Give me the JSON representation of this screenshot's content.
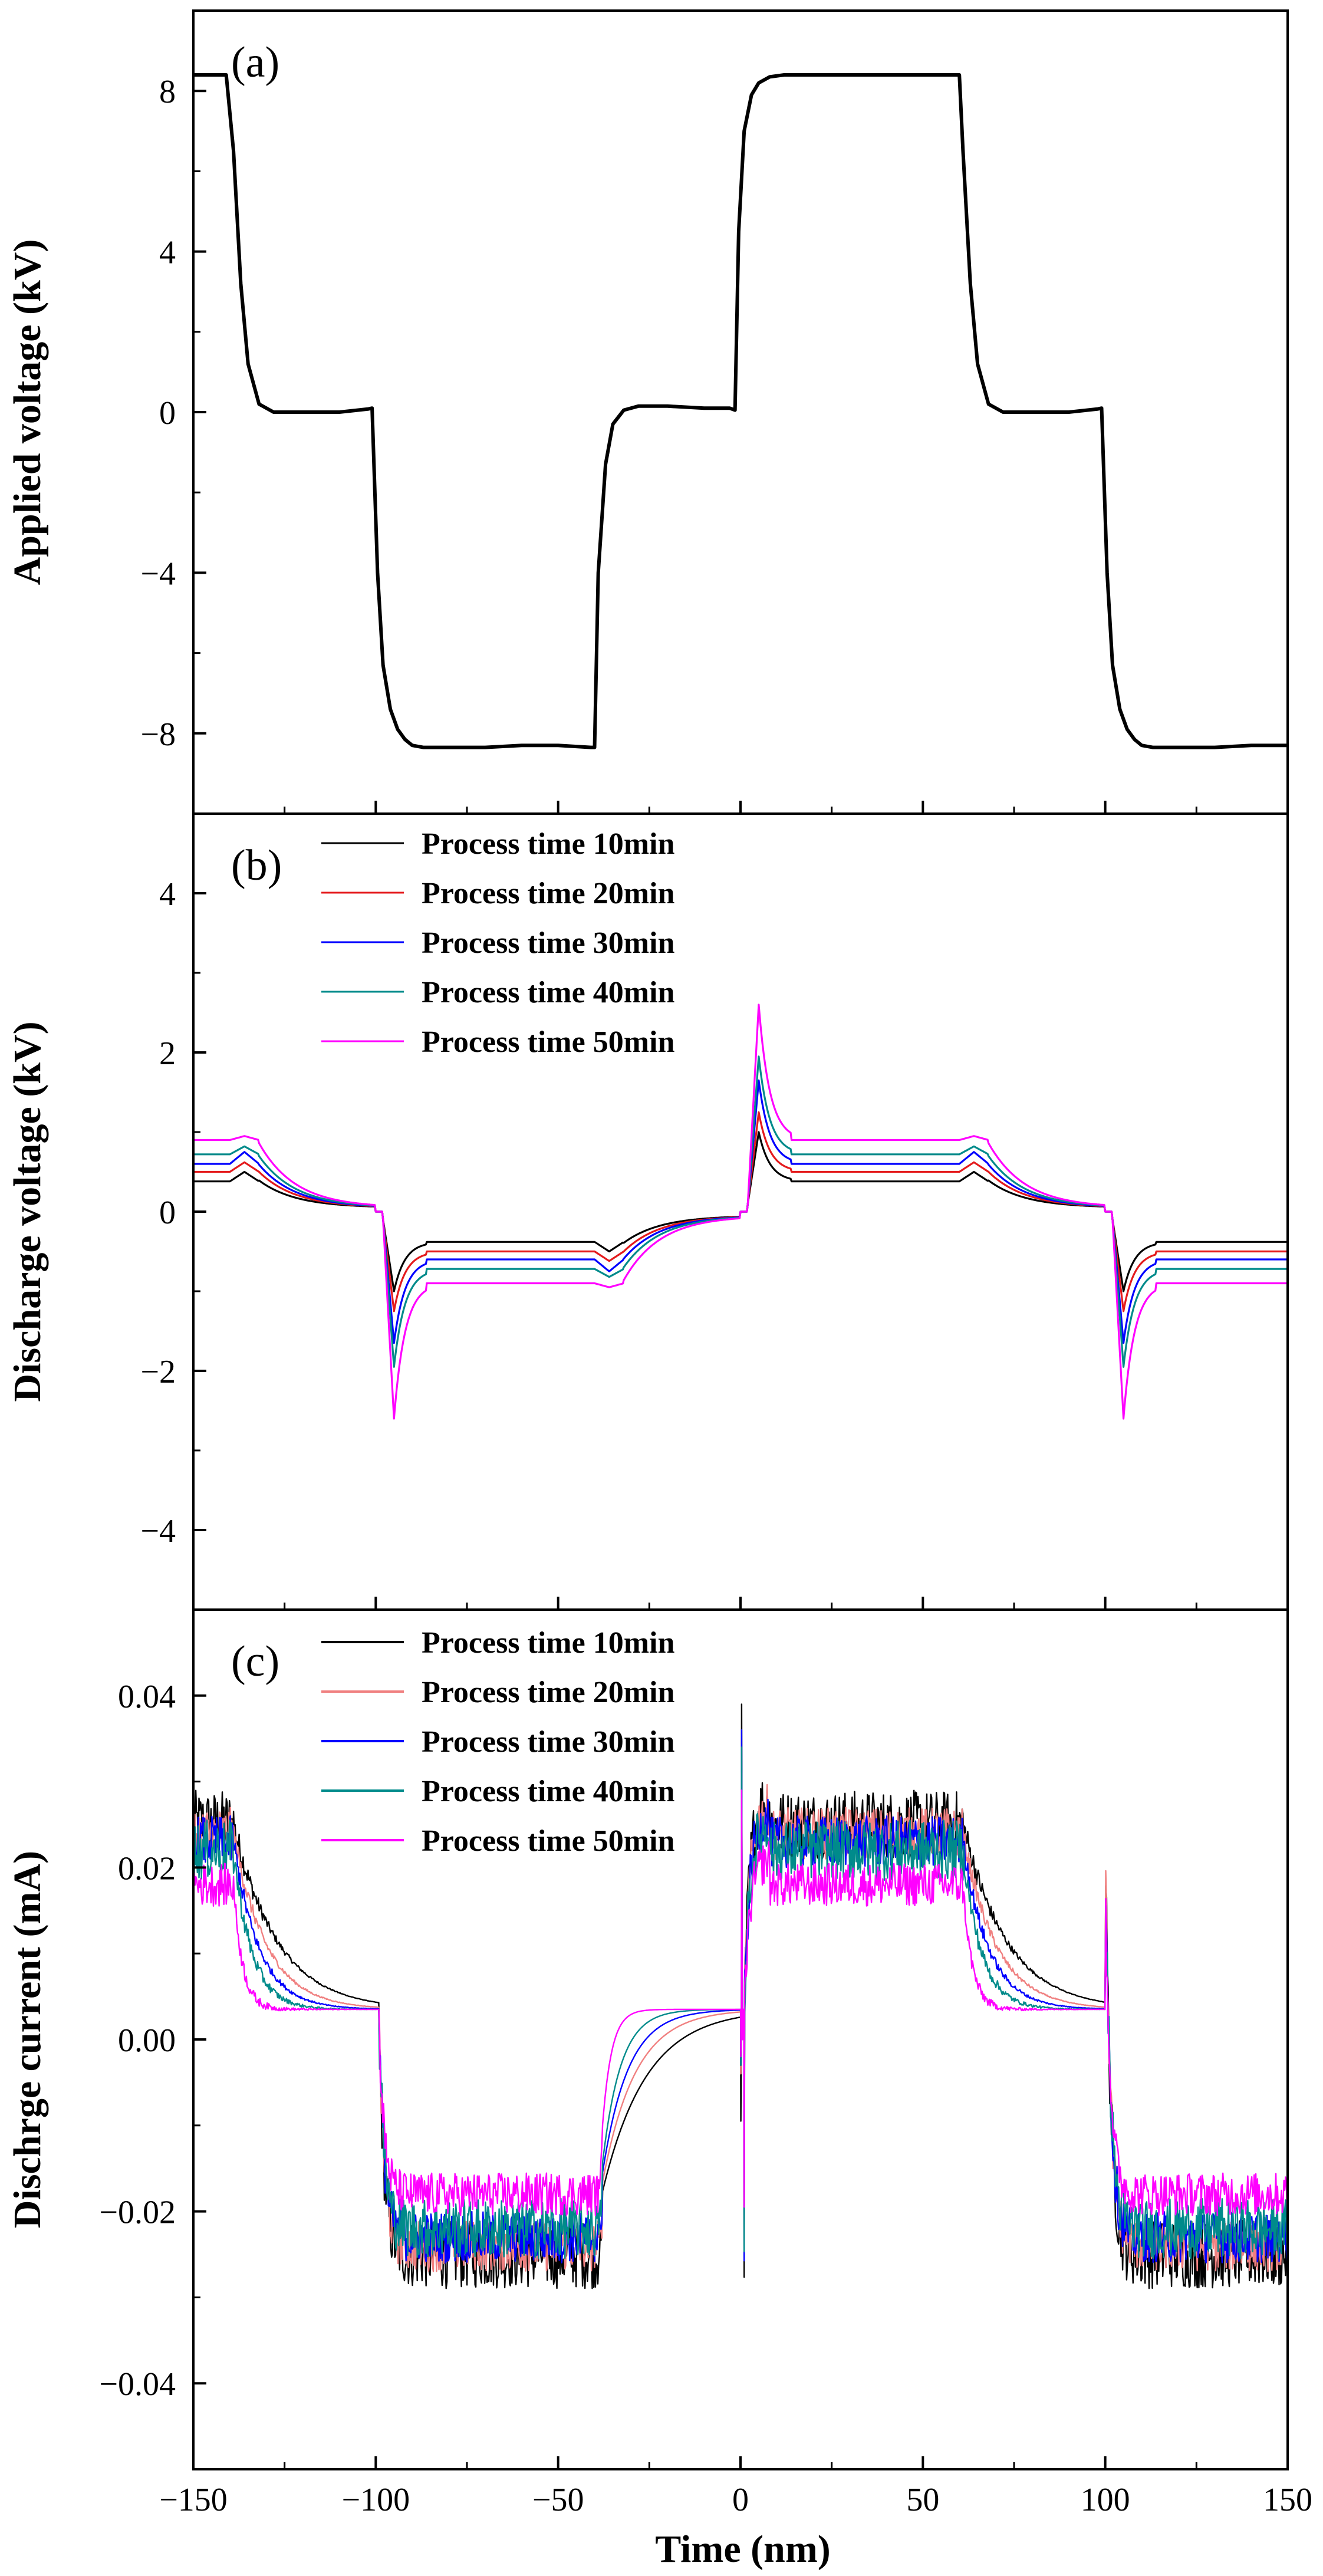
{
  "figure": {
    "xlabel": "Time (nm)",
    "xlim": [
      -150,
      150
    ],
    "xticks": [
      -150,
      -100,
      -50,
      0,
      50,
      100,
      150
    ],
    "xtick_labels": [
      "−150",
      "−100",
      "−50",
      "0",
      "50",
      "100",
      "150"
    ]
  },
  "chart_data": [
    {
      "type": "line",
      "panel": "(a)",
      "title": "",
      "xlabel": "Time (nm)",
      "ylabel": "Applied voltage (kV)",
      "xlim": [
        -150,
        150
      ],
      "ylim": [
        -10,
        10
      ],
      "yticks": [
        -8,
        -4,
        0,
        4,
        8
      ],
      "ytick_labels": [
        "−8",
        "−4",
        "0",
        "4",
        "8"
      ],
      "legend": [],
      "series": [
        {
          "name": "Applied voltage",
          "color": "#000000",
          "x": [
            -150,
            -141,
            -139,
            -137,
            -135,
            -132,
            -128,
            -120,
            -110,
            -102,
            -101,
            -99.5,
            -98,
            -96,
            -94,
            -92,
            -90,
            -87,
            -84,
            -78,
            -70,
            -60,
            -50,
            -41,
            -40,
            -39,
            -37,
            -35,
            -32,
            -28,
            -20,
            -10,
            -3,
            -1.5,
            -0.5,
            1,
            3,
            5,
            8,
            12,
            20,
            30,
            40,
            50,
            59,
            60,
            61,
            63,
            65,
            68,
            72,
            80,
            90,
            98,
            99,
            100.5,
            102,
            104,
            106,
            108,
            110,
            113,
            116,
            122,
            130,
            140,
            150
          ],
          "y": [
            8.4,
            8.4,
            6.5,
            3.2,
            1.2,
            0.2,
            0,
            0,
            0,
            0.08,
            0.1,
            -4.0,
            -6.3,
            -7.4,
            -7.9,
            -8.15,
            -8.3,
            -8.35,
            -8.35,
            -8.35,
            -8.35,
            -8.3,
            -8.3,
            -8.35,
            -8.35,
            -4.0,
            -1.3,
            -0.3,
            0.05,
            0.15,
            0.15,
            0.1,
            0.1,
            0.05,
            4.5,
            7.0,
            7.9,
            8.2,
            8.35,
            8.4,
            8.4,
            8.4,
            8.4,
            8.4,
            8.4,
            8.4,
            6.5,
            3.2,
            1.2,
            0.2,
            0,
            0,
            0,
            0.08,
            0.1,
            -4.0,
            -6.3,
            -7.4,
            -7.9,
            -8.15,
            -8.3,
            -8.35,
            -8.35,
            -8.35,
            -8.35,
            -8.3,
            -8.3
          ]
        }
      ]
    },
    {
      "type": "line",
      "panel": "(b)",
      "title": "",
      "xlabel": "Time (nm)",
      "ylabel": "Discharge voltage (kV)",
      "xlim": [
        -150,
        150
      ],
      "ylim": [
        -5,
        5
      ],
      "yticks": [
        -4,
        -2,
        0,
        2,
        4
      ],
      "ytick_labels": [
        "−4",
        "−2",
        "0",
        "2",
        "4"
      ],
      "legend": [
        {
          "label": "Process time 10min",
          "color": "#000000"
        },
        {
          "label": "Process time 20min",
          "color": "#e41a1c"
        },
        {
          "label": "Process time 30min",
          "color": "#0000ff"
        },
        {
          "label": "Process time 40min",
          "color": "#008b8b"
        },
        {
          "label": "Process time 50min",
          "color": "#ff00ff"
        }
      ],
      "series": [
        {
          "name": "Process time 10min",
          "color": "#000000",
          "amplitude": 0.38,
          "peak": 0.5,
          "spike": 1.0,
          "first_peak_time": -134
        },
        {
          "name": "Process time 20min",
          "color": "#e41a1c",
          "amplitude": 0.5,
          "peak": 0.62,
          "spike": 1.25,
          "first_peak_time": -134
        },
        {
          "name": "Process time 30min",
          "color": "#0000ff",
          "amplitude": 0.6,
          "peak": 0.75,
          "spike": 1.65,
          "first_peak_time": -134
        },
        {
          "name": "Process time 40min",
          "color": "#008b8b",
          "amplitude": 0.72,
          "peak": 0.82,
          "spike": 1.95,
          "first_peak_time": -134
        },
        {
          "name": "Process time 50min",
          "color": "#ff00ff",
          "amplitude": 0.9,
          "peak": 0.95,
          "spike": 2.6,
          "first_peak_time": -134
        }
      ]
    },
    {
      "type": "line",
      "panel": "(c)",
      "title": "",
      "xlabel": "Time (nm)",
      "ylabel": "Dischrge current (mA)",
      "xlim": [
        -150,
        150
      ],
      "ylim": [
        -0.05,
        0.05
      ],
      "yticks": [
        -0.04,
        -0.02,
        0.0,
        0.02,
        0.04
      ],
      "ytick_labels": [
        "−0.04",
        "−0.02",
        "0.00",
        "0.02",
        "0.04"
      ],
      "legend": [
        {
          "label": "Process time 10min",
          "color": "#000000"
        },
        {
          "label": "Process time 20min",
          "color": "#f08080"
        },
        {
          "label": "Process time 30min",
          "color": "#0000ff"
        },
        {
          "label": "Process time 40min",
          "color": "#008b8b"
        },
        {
          "label": "Process time 50min",
          "color": "#ff00ff"
        }
      ],
      "series": [
        {
          "name": "Process time 10min",
          "color": "#000000",
          "plateau": 0.025,
          "noise": 0.004,
          "tau": 12,
          "spike_max": 0.039,
          "spike_min": -0.0095
        },
        {
          "name": "Process time 20min",
          "color": "#f08080",
          "plateau": 0.024,
          "noise": 0.003,
          "tau": 9,
          "spike_max": 0.031,
          "spike_min": -0.004
        },
        {
          "name": "Process time 30min",
          "color": "#0000ff",
          "plateau": 0.023,
          "noise": 0.003,
          "tau": 7,
          "spike_max": 0.036,
          "spike_min": -0.003
        },
        {
          "name": "Process time 40min",
          "color": "#008b8b",
          "plateau": 0.022,
          "noise": 0.0035,
          "tau": 5,
          "spike_max": 0.034,
          "spike_min": -0.003
        },
        {
          "name": "Process time 50min",
          "color": "#ff00ff",
          "plateau": 0.018,
          "noise": 0.0025,
          "tau": 2.5,
          "spike_max": 0.029,
          "spike_min": -0.002
        }
      ]
    }
  ]
}
